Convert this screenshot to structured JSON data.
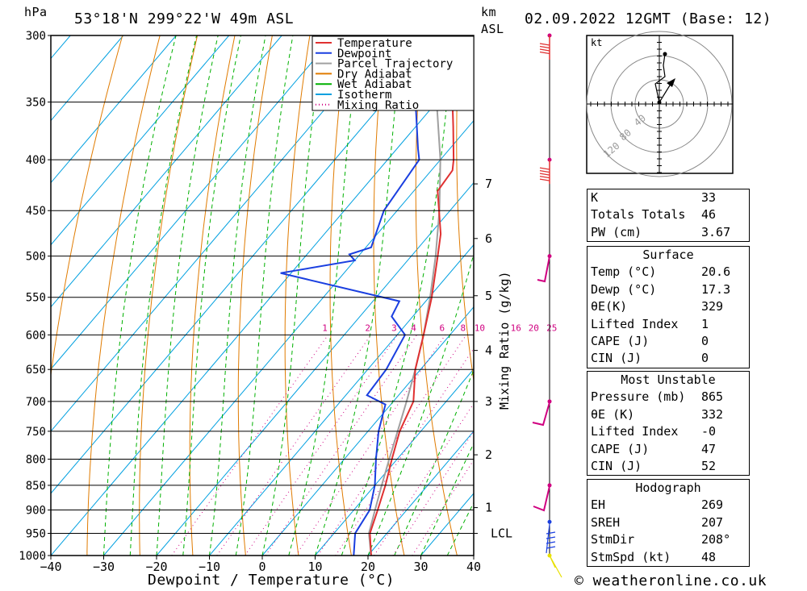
{
  "header": {
    "pressure_unit": "hPa",
    "location": "53°18'N  299°22'W  49m  ASL",
    "km_label": "km",
    "asl_label": "ASL",
    "datetime": "02.09.2022  12GMT  (Base: 12)"
  },
  "footer": {
    "xlabel": "Dewpoint / Temperature (°C)",
    "credit": "© weatheronline.co.uk",
    "mixing_ratio_axis": "Mixing Ratio (g/kg)"
  },
  "colors": {
    "temperature": "#e03030",
    "dewpoint": "#1a3fe0",
    "parcel": "#a0a0a0",
    "dry_adiabat": "#e07b00",
    "wet_adiabat": "#00b000",
    "isotherm": "#00a0e0",
    "mixing_ratio": "#d00080",
    "wind": "#d00080"
  },
  "chart_data": {
    "type": "skew-t",
    "xlim": [
      -40,
      40
    ],
    "pressure_levels": [
      300,
      350,
      400,
      450,
      500,
      550,
      600,
      650,
      700,
      750,
      800,
      850,
      900,
      950,
      1000
    ],
    "x_ticks": [
      -40,
      -30,
      -20,
      -10,
      0,
      10,
      20,
      30,
      40
    ],
    "km_ticks": [
      {
        "km": "7",
        "p": 423
      },
      {
        "km": "6",
        "p": 480
      },
      {
        "km": "5",
        "p": 548
      },
      {
        "km": "4",
        "p": 622
      },
      {
        "km": "3",
        "p": 700
      },
      {
        "km": "2",
        "p": 792
      },
      {
        "km": "1",
        "p": 895
      },
      {
        "km": "LCL",
        "p": 950
      }
    ],
    "mixing_ratio_labels": [
      "1",
      "2",
      "3",
      "4",
      "6",
      "8",
      "10",
      "16",
      "20",
      "25"
    ],
    "legend": [
      "Temperature",
      "Dewpoint",
      "Parcel Trajectory",
      "Dry Adiabat",
      "Wet Adiabat",
      "Isotherm",
      "Mixing Ratio"
    ],
    "legend_position": "top-right",
    "temperature": [
      {
        "p": 1000,
        "t": 20.6
      },
      {
        "p": 950,
        "t": 16.8
      },
      {
        "p": 900,
        "t": 14.5
      },
      {
        "p": 850,
        "t": 12.0
      },
      {
        "p": 800,
        "t": 9.0
      },
      {
        "p": 750,
        "t": 6.0
      },
      {
        "p": 700,
        "t": 3.8
      },
      {
        "p": 650,
        "t": -1.0
      },
      {
        "p": 600,
        "t": -5.0
      },
      {
        "p": 550,
        "t": -9.5
      },
      {
        "p": 500,
        "t": -15.0
      },
      {
        "p": 475,
        "t": -18.0
      },
      {
        "p": 430,
        "t": -25.5
      },
      {
        "p": 410,
        "t": -26.0
      },
      {
        "p": 400,
        "t": -27.5
      },
      {
        "p": 370,
        "t": -33.0
      },
      {
        "p": 350,
        "t": -37.0
      },
      {
        "p": 300,
        "t": -46.5
      }
    ],
    "dewpoint": [
      {
        "p": 1000,
        "t": 17.3
      },
      {
        "p": 950,
        "t": 14.0
      },
      {
        "p": 900,
        "t": 13.0
      },
      {
        "p": 850,
        "t": 10.0
      },
      {
        "p": 800,
        "t": 6.0
      },
      {
        "p": 750,
        "t": 2.0
      },
      {
        "p": 705,
        "t": -1.0
      },
      {
        "p": 690,
        "t": -6.0
      },
      {
        "p": 650,
        "t": -6.5
      },
      {
        "p": 600,
        "t": -8.5
      },
      {
        "p": 575,
        "t": -14.0
      },
      {
        "p": 555,
        "t": -15.0
      },
      {
        "p": 520,
        "t": -42.0
      },
      {
        "p": 505,
        "t": -30.0
      },
      {
        "p": 498,
        "t": -32.0
      },
      {
        "p": 490,
        "t": -29.0
      },
      {
        "p": 450,
        "t": -32.5
      },
      {
        "p": 400,
        "t": -34.0
      },
      {
        "p": 390,
        "t": -36.0
      },
      {
        "p": 350,
        "t": -44.0
      },
      {
        "p": 300,
        "t": -55.5
      }
    ],
    "parcel": [
      {
        "p": 1000,
        "t": 20.6
      },
      {
        "p": 950,
        "t": 16.6
      },
      {
        "p": 900,
        "t": 14.0
      },
      {
        "p": 850,
        "t": 11.3
      },
      {
        "p": 800,
        "t": 8.5
      },
      {
        "p": 750,
        "t": 5.6
      },
      {
        "p": 700,
        "t": 2.5
      },
      {
        "p": 650,
        "t": -1.0
      },
      {
        "p": 600,
        "t": -5.0
      },
      {
        "p": 550,
        "t": -9.8
      },
      {
        "p": 500,
        "t": -15.4
      },
      {
        "p": 450,
        "t": -22.0
      },
      {
        "p": 400,
        "t": -30.0
      },
      {
        "p": 350,
        "t": -40.0
      },
      {
        "p": 310,
        "t": -50.0
      }
    ],
    "wind_levels": [
      300,
      400,
      500,
      700,
      850,
      925,
      1000
    ]
  },
  "hodograph": {
    "unit": "kt",
    "ring_labels": [
      "40",
      "80",
      "120"
    ]
  },
  "indices": [
    {
      "label": "K",
      "value": "33"
    },
    {
      "label": "Totals Totals",
      "value": "46"
    },
    {
      "label": "PW (cm)",
      "value": "3.67"
    }
  ],
  "surface": {
    "title": "Surface",
    "rows": [
      {
        "label": "Temp (°C)",
        "value": "20.6"
      },
      {
        "label": "Dewp (°C)",
        "value": "17.3"
      },
      {
        "label": "θE(K)",
        "value": "329"
      },
      {
        "label": "Lifted Index",
        "value": "1"
      },
      {
        "label": "CAPE (J)",
        "value": "0"
      },
      {
        "label": "CIN (J)",
        "value": "0"
      }
    ]
  },
  "most_unstable": {
    "title": "Most Unstable",
    "rows": [
      {
        "label": "Pressure (mb)",
        "value": "865"
      },
      {
        "label": "θE (K)",
        "value": "332"
      },
      {
        "label": "Lifted Index",
        "value": "-0"
      },
      {
        "label": "CAPE (J)",
        "value": "47"
      },
      {
        "label": "CIN (J)",
        "value": "52"
      }
    ]
  },
  "hodograph_table": {
    "title": "Hodograph",
    "rows": [
      {
        "label": "EH",
        "value": "269"
      },
      {
        "label": "SREH",
        "value": "207"
      },
      {
        "label": "StmDir",
        "value": "208°"
      },
      {
        "label": "StmSpd (kt)",
        "value": "48"
      }
    ]
  }
}
